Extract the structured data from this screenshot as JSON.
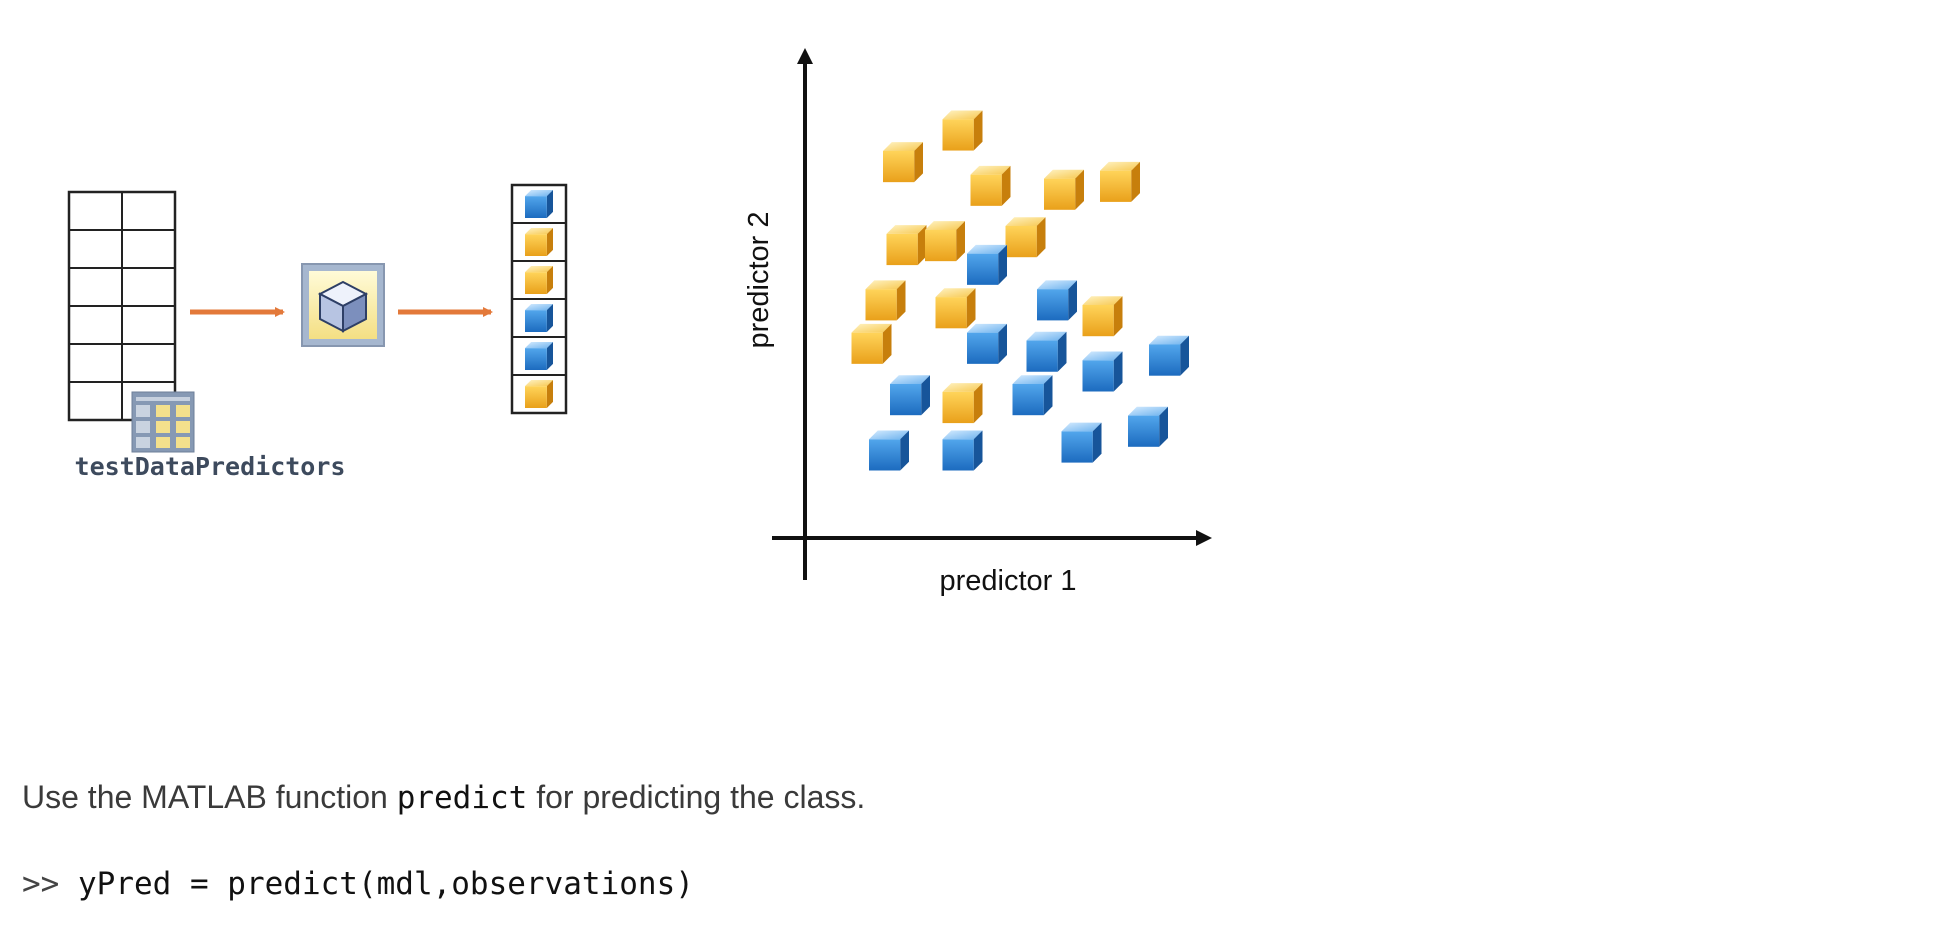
{
  "workflow": {
    "input_label": "testDataPredictors",
    "output_classes": [
      "blue",
      "orange",
      "orange",
      "blue",
      "blue",
      "orange"
    ],
    "model_icon": "model-cube-icon",
    "table_icon": "table-icon",
    "arrow_icon": "arrow-right-icon"
  },
  "scatter": {
    "xlabel": "predictor 1",
    "ylabel": "predictor 2",
    "colors": {
      "orange": "#f5b323",
      "blue": "#2f86d6"
    },
    "points": [
      {
        "x": 0.35,
        "y": 0.91,
        "cls": "orange"
      },
      {
        "x": 0.18,
        "y": 0.83,
        "cls": "orange"
      },
      {
        "x": 0.43,
        "y": 0.77,
        "cls": "orange"
      },
      {
        "x": 0.64,
        "y": 0.76,
        "cls": "orange"
      },
      {
        "x": 0.8,
        "y": 0.78,
        "cls": "orange"
      },
      {
        "x": 0.19,
        "y": 0.62,
        "cls": "orange"
      },
      {
        "x": 0.3,
        "y": 0.63,
        "cls": "orange"
      },
      {
        "x": 0.53,
        "y": 0.64,
        "cls": "orange"
      },
      {
        "x": 0.42,
        "y": 0.57,
        "cls": "blue"
      },
      {
        "x": 0.13,
        "y": 0.48,
        "cls": "orange"
      },
      {
        "x": 0.33,
        "y": 0.46,
        "cls": "orange"
      },
      {
        "x": 0.62,
        "y": 0.48,
        "cls": "blue"
      },
      {
        "x": 0.75,
        "y": 0.44,
        "cls": "orange"
      },
      {
        "x": 0.09,
        "y": 0.37,
        "cls": "orange"
      },
      {
        "x": 0.42,
        "y": 0.37,
        "cls": "blue"
      },
      {
        "x": 0.59,
        "y": 0.35,
        "cls": "blue"
      },
      {
        "x": 0.75,
        "y": 0.3,
        "cls": "blue"
      },
      {
        "x": 0.94,
        "y": 0.34,
        "cls": "blue"
      },
      {
        "x": 0.2,
        "y": 0.24,
        "cls": "blue"
      },
      {
        "x": 0.35,
        "y": 0.22,
        "cls": "orange"
      },
      {
        "x": 0.55,
        "y": 0.24,
        "cls": "blue"
      },
      {
        "x": 0.88,
        "y": 0.16,
        "cls": "blue"
      },
      {
        "x": 0.14,
        "y": 0.1,
        "cls": "blue"
      },
      {
        "x": 0.35,
        "y": 0.1,
        "cls": "blue"
      },
      {
        "x": 0.69,
        "y": 0.12,
        "cls": "blue"
      }
    ]
  },
  "text": {
    "description_before": "Use the MATLAB function ",
    "description_code": "predict",
    "description_after": " for predicting the class.",
    "prompt": ">>",
    "command": "yPred = predict(mdl,observations)"
  }
}
